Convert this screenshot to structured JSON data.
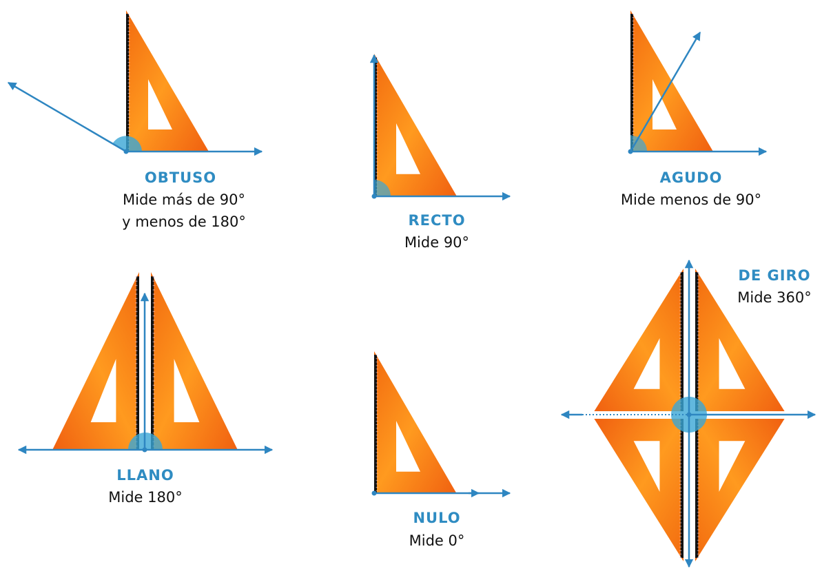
{
  "angles": [
    {
      "name": "OBTUSO",
      "description": [
        "Mide más de 90°",
        "y menos de 180°"
      ]
    },
    {
      "name": "RECTO",
      "description": [
        "Mide 90°"
      ]
    },
    {
      "name": "AGUDO",
      "description": [
        "Mide menos de 90°"
      ]
    },
    {
      "name": "LLANO",
      "description": [
        "Mide 180°"
      ]
    },
    {
      "name": "NULO",
      "description": [
        "Mide 0°"
      ]
    },
    {
      "name": "DE GIRO",
      "description": [
        "Mide 360°"
      ]
    }
  ]
}
